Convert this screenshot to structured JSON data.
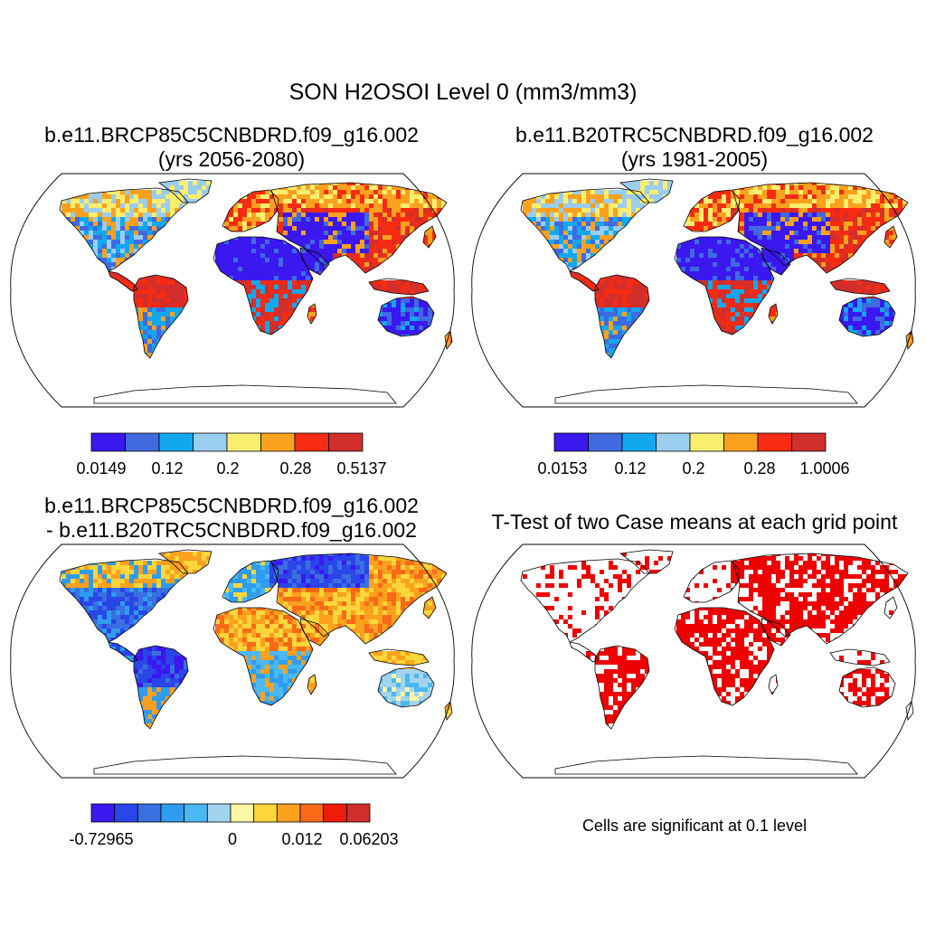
{
  "title": "SON H2OSOI Level 0 (mm3/mm3)",
  "panels": [
    {
      "id": "p1",
      "title_line1": "b.e11.BRCP85C5CNBDRD.f09_g16.002",
      "title_line2": "(yrs 2056-2080)",
      "colorbar": {
        "colors": [
          "#3b18f0",
          "#3f6ae0",
          "#12a8f0",
          "#9acdee",
          "#fbee6f",
          "#fba11e",
          "#f72b12",
          "#d12e2c"
        ],
        "tick_labels": [
          "0.0149",
          "0.12",
          "0.2",
          "0.28",
          "0.5137"
        ]
      }
    },
    {
      "id": "p2",
      "title_line1": "b.e11.B20TRC5CNBDRD.f09_g16.002",
      "title_line2": "(yrs 1981-2005)",
      "colorbar": {
        "colors": [
          "#3b18f0",
          "#3f6ae0",
          "#12a8f0",
          "#9acdee",
          "#fbee6f",
          "#fba11e",
          "#f72b12",
          "#d12e2c"
        ],
        "tick_labels": [
          "0.0153",
          "0.12",
          "0.2",
          "0.28",
          "1.0006"
        ]
      }
    },
    {
      "id": "p3",
      "title_line1": "b.e11.BRCP85C5CNBDRD.f09_g16.002",
      "title_line2": "- b.e11.B20TRC5CNBDRD.f09_g16.002",
      "colorbar": {
        "colors": [
          "#3b18f0",
          "#2a45e8",
          "#3a6fe0",
          "#2f9cf0",
          "#4ab8f2",
          "#a3d4ee",
          "#fdf6a6",
          "#fcd63a",
          "#fba11e",
          "#f86a18",
          "#f01c0c",
          "#d12e2c"
        ],
        "tick_labels": [
          "-0.72965",
          "0",
          "0.012",
          "0.06203"
        ]
      }
    },
    {
      "id": "p4",
      "title_line1": "T-Test of two Case means at each grid point",
      "note": "Cells are significant at 0.1 level",
      "significant_color": "#ee0000"
    }
  ]
}
